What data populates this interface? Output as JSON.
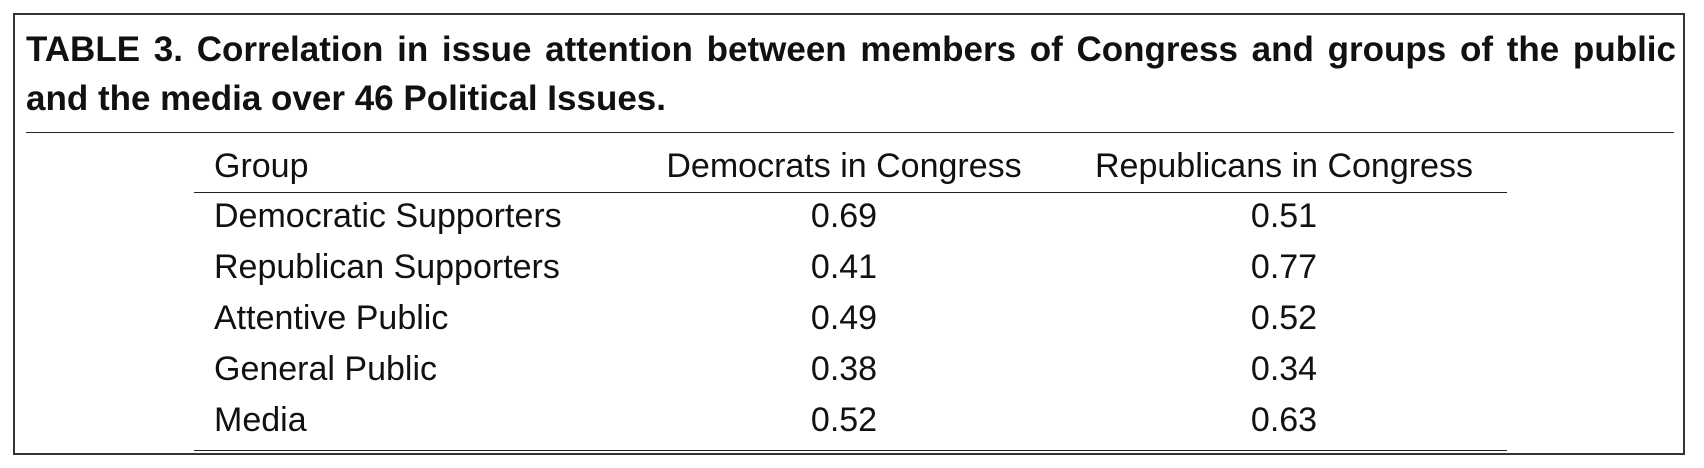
{
  "caption": "TABLE 3.  Correlation in issue attention between members of Congress and groups of the public and the media over 46 Political Issues.",
  "table": {
    "headers": [
      "Group",
      "Democrats in Congress",
      "Republicans in Congress"
    ],
    "rows": [
      [
        "Democratic Supporters",
        "0.69",
        "0.51"
      ],
      [
        "Republican Supporters",
        "0.41",
        "0.77"
      ],
      [
        "Attentive Public",
        "0.49",
        "0.52"
      ],
      [
        "General Public",
        "0.38",
        "0.34"
      ],
      [
        "Media",
        "0.52",
        "0.63"
      ]
    ]
  }
}
